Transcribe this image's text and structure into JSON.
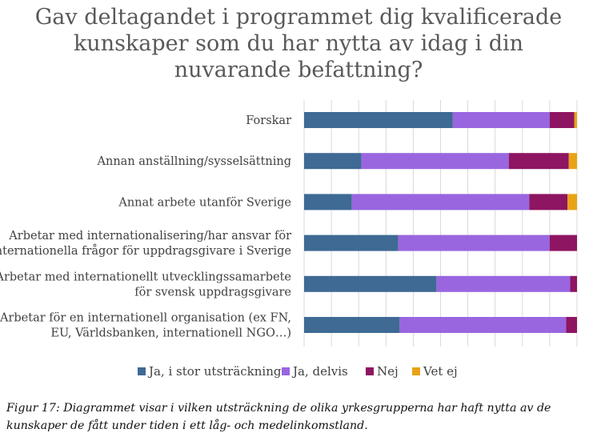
{
  "chart_data": {
    "type": "bar",
    "orientation": "horizontal",
    "stacked": "percent",
    "title": "Gav deltagandet i programmet dig kvalificerade kunskaper som du har nytta av idag i din nuvarande befattning?",
    "title_lines": [
      "Gav deltagandet i programmet dig kvalificerade",
      "kunskaper som du har nytta av idag i din",
      "nuvarande befattning?"
    ],
    "categories": [
      [
        "Forskar"
      ],
      [
        "Annan anställning/sysselsättning"
      ],
      [
        "Annat arbete utanför Sverige"
      ],
      [
        "Arbetar med internationalisering/har ansvar för",
        "internationella frågor för uppdragsgivare i Sverige"
      ],
      [
        "Arbetar med internationellt utvecklingssamarbete",
        "för svensk uppdragsgivare"
      ],
      [
        "Arbetar för en internationell organisation (ex FN,",
        "EU, Världsbanken, internationell NGO…)"
      ]
    ],
    "series": [
      {
        "name": "Ja, i stor utsträckning",
        "color": "#3E6A94",
        "values": [
          54.5,
          21,
          17.5,
          34.5,
          48.5,
          35
        ]
      },
      {
        "name": "Ja, delvis",
        "color": "#9966E0",
        "values": [
          35.5,
          54,
          65,
          55.5,
          49,
          61
        ]
      },
      {
        "name": "Nej",
        "color": "#8E1561",
        "values": [
          9,
          22,
          14,
          10,
          2.5,
          4
        ]
      },
      {
        "name": "Vet ej",
        "color": "#E8A317",
        "values": [
          1,
          3,
          3.5,
          0,
          0,
          0
        ]
      }
    ],
    "xlim": [
      0,
      100
    ],
    "grid": true,
    "legend_position": "bottom"
  },
  "caption": "Figur 17: Diagrammet visar i vilken utsträckning de olika yrkesgrupperna har haft nytta av de kunskaper de fått under tiden i ett låg- och medelinkomstland."
}
